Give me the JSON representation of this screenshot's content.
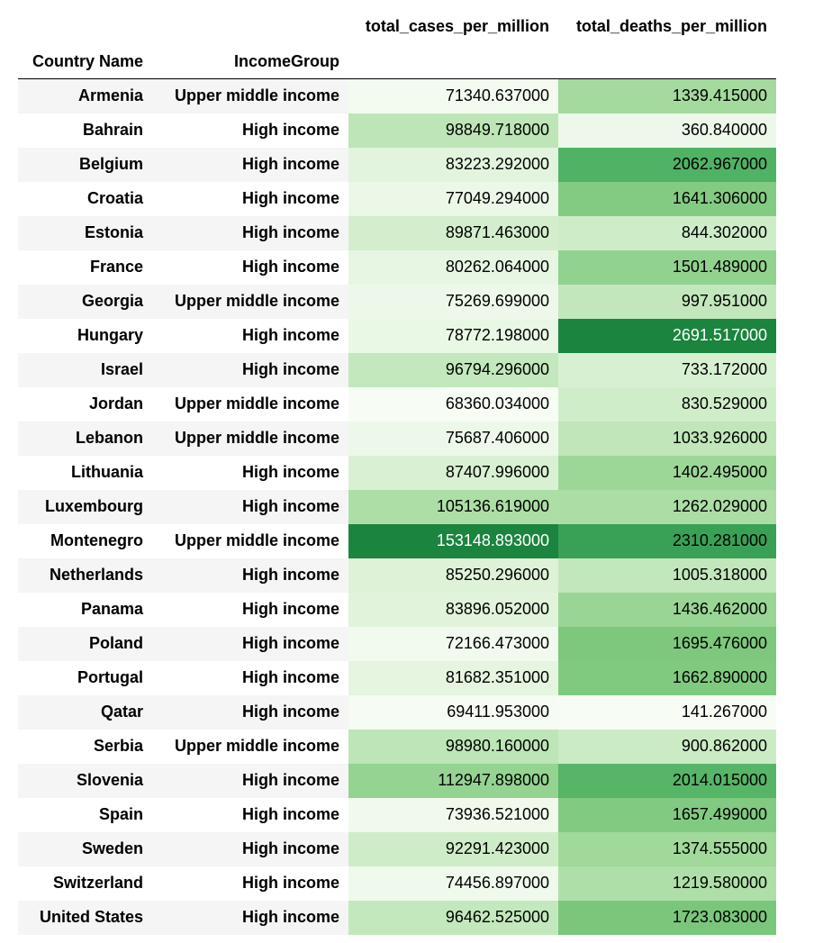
{
  "table": {
    "index_headers": [
      "Country Name",
      "IncomeGroup"
    ],
    "value_headers": [
      "total_cases_per_million",
      "total_deaths_per_million"
    ],
    "rows": [
      {
        "country": "Armenia",
        "income": "Upper middle income",
        "cases": "71340.637000",
        "deaths": "1339.415000"
      },
      {
        "country": "Bahrain",
        "income": "High income",
        "cases": "98849.718000",
        "deaths": "360.840000"
      },
      {
        "country": "Belgium",
        "income": "High income",
        "cases": "83223.292000",
        "deaths": "2062.967000"
      },
      {
        "country": "Croatia",
        "income": "High income",
        "cases": "77049.294000",
        "deaths": "1641.306000"
      },
      {
        "country": "Estonia",
        "income": "High income",
        "cases": "89871.463000",
        "deaths": "844.302000"
      },
      {
        "country": "France",
        "income": "High income",
        "cases": "80262.064000",
        "deaths": "1501.489000"
      },
      {
        "country": "Georgia",
        "income": "Upper middle income",
        "cases": "75269.699000",
        "deaths": "997.951000"
      },
      {
        "country": "Hungary",
        "income": "High income",
        "cases": "78772.198000",
        "deaths": "2691.517000"
      },
      {
        "country": "Israel",
        "income": "High income",
        "cases": "96794.296000",
        "deaths": "733.172000"
      },
      {
        "country": "Jordan",
        "income": "Upper middle income",
        "cases": "68360.034000",
        "deaths": "830.529000"
      },
      {
        "country": "Lebanon",
        "income": "Upper middle income",
        "cases": "75687.406000",
        "deaths": "1033.926000"
      },
      {
        "country": "Lithuania",
        "income": "High income",
        "cases": "87407.996000",
        "deaths": "1402.495000"
      },
      {
        "country": "Luxembourg",
        "income": "High income",
        "cases": "105136.619000",
        "deaths": "1262.029000"
      },
      {
        "country": "Montenegro",
        "income": "Upper middle income",
        "cases": "153148.893000",
        "deaths": "2310.281000"
      },
      {
        "country": "Netherlands",
        "income": "High income",
        "cases": "85250.296000",
        "deaths": "1005.318000"
      },
      {
        "country": "Panama",
        "income": "High income",
        "cases": "83896.052000",
        "deaths": "1436.462000"
      },
      {
        "country": "Poland",
        "income": "High income",
        "cases": "72166.473000",
        "deaths": "1695.476000"
      },
      {
        "country": "Portugal",
        "income": "High income",
        "cases": "81682.351000",
        "deaths": "1662.890000"
      },
      {
        "country": "Qatar",
        "income": "High income",
        "cases": "69411.953000",
        "deaths": "141.267000"
      },
      {
        "country": "Serbia",
        "income": "Upper middle income",
        "cases": "98980.160000",
        "deaths": "900.862000"
      },
      {
        "country": "Slovenia",
        "income": "High income",
        "cases": "112947.898000",
        "deaths": "2014.015000"
      },
      {
        "country": "Spain",
        "income": "High income",
        "cases": "73936.521000",
        "deaths": "1657.499000"
      },
      {
        "country": "Sweden",
        "income": "High income",
        "cases": "92291.423000",
        "deaths": "1374.555000"
      },
      {
        "country": "Switzerland",
        "income": "High income",
        "cases": "74456.897000",
        "deaths": "1219.580000"
      },
      {
        "country": "United States",
        "income": "High income",
        "cases": "96462.525000",
        "deaths": "1723.083000"
      }
    ]
  },
  "colors": {
    "gradient_light": "#f7fcf5",
    "gradient_dark": "#00441b",
    "row_stripe": "#f5f5f5",
    "text_dark": "#000000",
    "text_light": "#ffffff"
  }
}
